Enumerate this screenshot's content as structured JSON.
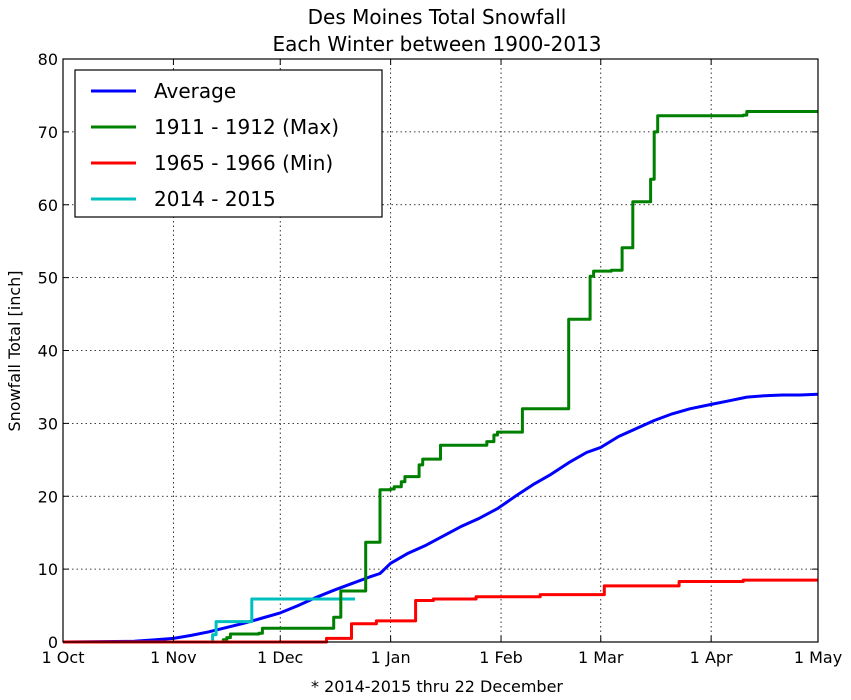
{
  "chart_data": {
    "type": "line",
    "title_line1": "Des Moines Total Snowfall",
    "title_line2": "Each Winter between 1900-2013",
    "xlabel": "* 2014-2015 thru 22 December",
    "ylabel": "Snowfall Total [inch]",
    "xlim_days": [
      0,
      212
    ],
    "ylim": [
      0,
      80
    ],
    "grid": true,
    "legend_position": "top-left",
    "x_ticks": [
      {
        "label": "1 Oct",
        "day": 0
      },
      {
        "label": "1 Nov",
        "day": 31
      },
      {
        "label": "1 Dec",
        "day": 61
      },
      {
        "label": "1 Jan",
        "day": 92
      },
      {
        "label": "1 Feb",
        "day": 123
      },
      {
        "label": "1 Mar",
        "day": 151
      },
      {
        "label": "1 Apr",
        "day": 182
      },
      {
        "label": "1 May",
        "day": 212
      }
    ],
    "y_ticks": [
      0,
      10,
      20,
      30,
      40,
      50,
      60,
      70,
      80
    ],
    "series": [
      {
        "name": "Average",
        "color": "#0000ff",
        "step": false,
        "points": [
          [
            0,
            0
          ],
          [
            20,
            0.1
          ],
          [
            26,
            0.3
          ],
          [
            31,
            0.5
          ],
          [
            36,
            0.9
          ],
          [
            41,
            1.4
          ],
          [
            46,
            2.0
          ],
          [
            51,
            2.6
          ],
          [
            56,
            3.3
          ],
          [
            61,
            4.0
          ],
          [
            66,
            5.0
          ],
          [
            71,
            6.1
          ],
          [
            76,
            7.1
          ],
          [
            81,
            8.0
          ],
          [
            86,
            8.9
          ],
          [
            89,
            9.4
          ],
          [
            92,
            10.8
          ],
          [
            97,
            12.2
          ],
          [
            102,
            13.3
          ],
          [
            107,
            14.6
          ],
          [
            112,
            15.9
          ],
          [
            117,
            17.0
          ],
          [
            122,
            18.3
          ],
          [
            127,
            20.0
          ],
          [
            132,
            21.6
          ],
          [
            137,
            23.0
          ],
          [
            142,
            24.6
          ],
          [
            147,
            26.0
          ],
          [
            151,
            26.7
          ],
          [
            156,
            28.2
          ],
          [
            161,
            29.3
          ],
          [
            166,
            30.4
          ],
          [
            171,
            31.3
          ],
          [
            176,
            32.0
          ],
          [
            182,
            32.6
          ],
          [
            187,
            33.1
          ],
          [
            192,
            33.6
          ],
          [
            197,
            33.8
          ],
          [
            202,
            33.9
          ],
          [
            207,
            33.9
          ],
          [
            212,
            34.0
          ]
        ]
      },
      {
        "name": "1911 - 1912 (Max)",
        "color": "#008000",
        "step": true,
        "points": [
          [
            0,
            0
          ],
          [
            45,
            0.3
          ],
          [
            46,
            0.6
          ],
          [
            47,
            1.1
          ],
          [
            55,
            1.2
          ],
          [
            56,
            1.9
          ],
          [
            75,
            1.9
          ],
          [
            76,
            3.4
          ],
          [
            78,
            7.0
          ],
          [
            84,
            7.0
          ],
          [
            85,
            13.7
          ],
          [
            88,
            13.7
          ],
          [
            89,
            20.9
          ],
          [
            92,
            21.0
          ],
          [
            93,
            21.3
          ],
          [
            95,
            22.0
          ],
          [
            96,
            22.7
          ],
          [
            99,
            22.7
          ],
          [
            100,
            24.3
          ],
          [
            101,
            25.1
          ],
          [
            105,
            25.1
          ],
          [
            106,
            27.0
          ],
          [
            118,
            27.0
          ],
          [
            119,
            27.5
          ],
          [
            121,
            28.4
          ],
          [
            122,
            28.8
          ],
          [
            128,
            28.8
          ],
          [
            129,
            32.0
          ],
          [
            141,
            32.0
          ],
          [
            142,
            44.3
          ],
          [
            147,
            44.3
          ],
          [
            148,
            50.2
          ],
          [
            149,
            50.9
          ],
          [
            153,
            50.9
          ],
          [
            154,
            51.0
          ],
          [
            156,
            51.0
          ],
          [
            157,
            54.1
          ],
          [
            159,
            54.1
          ],
          [
            160,
            60.4
          ],
          [
            164,
            60.4
          ],
          [
            165,
            63.5
          ],
          [
            166,
            70.0
          ],
          [
            167,
            72.2
          ],
          [
            191,
            72.3
          ],
          [
            192,
            72.8
          ],
          [
            212,
            72.8
          ]
        ]
      },
      {
        "name": "1965 - 1966 (Min)",
        "color": "#ff0000",
        "step": true,
        "points": [
          [
            0,
            0
          ],
          [
            73,
            0
          ],
          [
            74,
            0.5
          ],
          [
            80,
            0.5
          ],
          [
            81,
            2.5
          ],
          [
            87,
            2.5
          ],
          [
            88,
            2.9
          ],
          [
            98,
            2.9
          ],
          [
            99,
            5.7
          ],
          [
            103,
            5.7
          ],
          [
            104,
            5.9
          ],
          [
            115,
            5.9
          ],
          [
            116,
            6.2
          ],
          [
            133,
            6.2
          ],
          [
            134,
            6.5
          ],
          [
            151,
            6.5
          ],
          [
            152,
            7.7
          ],
          [
            172,
            7.7
          ],
          [
            173,
            8.3
          ],
          [
            190,
            8.3
          ],
          [
            191,
            8.5
          ],
          [
            212,
            8.5
          ]
        ]
      },
      {
        "name": "2014 - 2015",
        "color": "#00bfbf",
        "step": true,
        "points": [
          [
            0,
            0
          ],
          [
            41,
            0
          ],
          [
            42,
            1.0
          ],
          [
            43,
            2.8
          ],
          [
            52,
            2.8
          ],
          [
            53,
            5.9
          ],
          [
            82,
            5.9
          ]
        ]
      }
    ]
  }
}
